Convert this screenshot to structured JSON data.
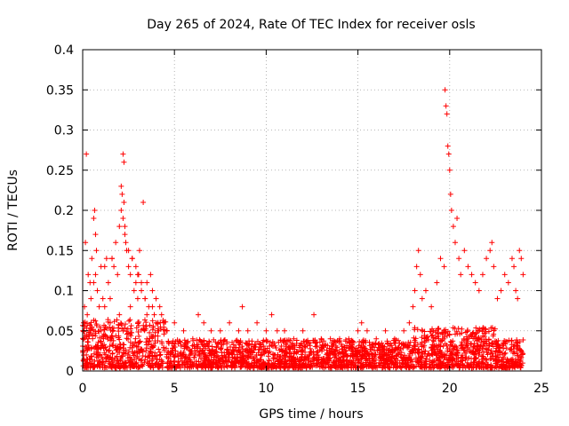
{
  "chart_data": {
    "type": "scatter",
    "title": "Day 265 of 2024, Rate Of TEC Index for receiver osls",
    "xlabel": "GPS time / hours",
    "ylabel": "ROTI / TECUs",
    "xlim": [
      0,
      25
    ],
    "ylim": [
      0,
      0.4
    ],
    "xticks": [
      0,
      5,
      10,
      15,
      20,
      25
    ],
    "xtick_labels": [
      "0",
      "5",
      "10",
      "15",
      "20",
      "25"
    ],
    "yticks": [
      0,
      0.05,
      0.1,
      0.15,
      0.2,
      0.25,
      0.3,
      0.35,
      0.4
    ],
    "ytick_labels": [
      "0",
      "0.05",
      "0.1",
      "0.15",
      "0.2",
      "0.25",
      "0.3",
      "0.35",
      "0.4"
    ],
    "grid": true,
    "marker": "plus",
    "color": "#ff0000",
    "series": [
      {
        "x": [
          0.05,
          0.1,
          0.15,
          0.2,
          0.25,
          0.3,
          0.35,
          0.4,
          0.45,
          0.5,
          0.6,
          0.7,
          0.8,
          0.9,
          1.0,
          1.1,
          1.2,
          1.3,
          1.4,
          1.5,
          1.6,
          1.7,
          1.8,
          1.9,
          2.0,
          2.1,
          2.2,
          2.25,
          2.3,
          2.4,
          2.5,
          2.6,
          2.7,
          2.8,
          2.9,
          3.0,
          3.1,
          3.2,
          3.3,
          3.4,
          3.5,
          3.6,
          3.7,
          3.8,
          3.9,
          4.0,
          4.1,
          4.2,
          4.3,
          4.4,
          4.5,
          0.15,
          0.2,
          0.6,
          0.65,
          0.7,
          0.75,
          1.2,
          1.6,
          2.1,
          2.15,
          2.2,
          2.25,
          2.3,
          2.35,
          2.5,
          2.7,
          2.9,
          3.05,
          3.2,
          3.4,
          3.8,
          4.1,
          0.3,
          1.0,
          1.5,
          2.0,
          2.6,
          3.0,
          3.5,
          4.0
        ],
        "y": [
          0.06,
          0.08,
          0.16,
          0.27,
          0.07,
          0.12,
          0.05,
          0.11,
          0.09,
          0.14,
          0.11,
          0.12,
          0.1,
          0.08,
          0.13,
          0.09,
          0.08,
          0.14,
          0.11,
          0.09,
          0.14,
          0.13,
          0.16,
          0.12,
          0.18,
          0.2,
          0.27,
          0.26,
          0.17,
          0.15,
          0.13,
          0.12,
          0.14,
          0.1,
          0.11,
          0.12,
          0.15,
          0.1,
          0.21,
          0.09,
          0.11,
          0.08,
          0.12,
          0.1,
          0.07,
          0.09,
          0.06,
          0.08,
          0.07,
          0.06,
          0.05,
          0.03,
          0.02,
          0.19,
          0.2,
          0.17,
          0.15,
          0.13,
          0.14,
          0.23,
          0.22,
          0.19,
          0.21,
          0.18,
          0.16,
          0.15,
          0.14,
          0.13,
          0.12,
          0.11,
          0.09,
          0.08,
          0.06,
          0.04,
          0.05,
          0.06,
          0.07,
          0.08,
          0.09,
          0.07,
          0.06
        ]
      },
      {
        "x": [
          4.6,
          5.0,
          5.5,
          6.0,
          6.3,
          6.6,
          7.0,
          7.5,
          8.0,
          8.5,
          8.7,
          9.0,
          9.5,
          10.0,
          10.3,
          10.6,
          11.0,
          11.5,
          12.0,
          12.6,
          13.0,
          13.5,
          14.0,
          14.5,
          15.0,
          15.2,
          15.5,
          16.0,
          16.5,
          17.0,
          17.5
        ],
        "y": [
          0.05,
          0.06,
          0.05,
          0.04,
          0.07,
          0.06,
          0.05,
          0.05,
          0.06,
          0.05,
          0.08,
          0.05,
          0.06,
          0.05,
          0.07,
          0.05,
          0.05,
          0.04,
          0.05,
          0.07,
          0.04,
          0.04,
          0.04,
          0.04,
          0.05,
          0.06,
          0.05,
          0.04,
          0.05,
          0.04,
          0.05
        ]
      },
      {
        "x": [
          17.8,
          18.0,
          18.1,
          18.2,
          18.3,
          18.4,
          18.5,
          18.7,
          19.0,
          19.3,
          19.5,
          19.7,
          19.75,
          19.8,
          19.85,
          19.9,
          19.95,
          20.0,
          20.05,
          20.1,
          20.2,
          20.3,
          20.4,
          20.5,
          20.6,
          20.8,
          21.0,
          21.2,
          21.4,
          21.6,
          21.8,
          22.0,
          22.2,
          22.3,
          22.4,
          22.6,
          22.8,
          23.0,
          23.2,
          23.4,
          23.5,
          23.6,
          23.7,
          23.8,
          23.9,
          24.0
        ],
        "y": [
          0.06,
          0.08,
          0.1,
          0.13,
          0.15,
          0.12,
          0.09,
          0.1,
          0.08,
          0.11,
          0.14,
          0.13,
          0.35,
          0.33,
          0.32,
          0.28,
          0.27,
          0.25,
          0.22,
          0.2,
          0.18,
          0.16,
          0.19,
          0.14,
          0.12,
          0.15,
          0.13,
          0.12,
          0.11,
          0.1,
          0.12,
          0.14,
          0.15,
          0.16,
          0.13,
          0.09,
          0.1,
          0.12,
          0.11,
          0.14,
          0.13,
          0.1,
          0.09,
          0.15,
          0.14,
          0.12
        ]
      }
    ]
  }
}
